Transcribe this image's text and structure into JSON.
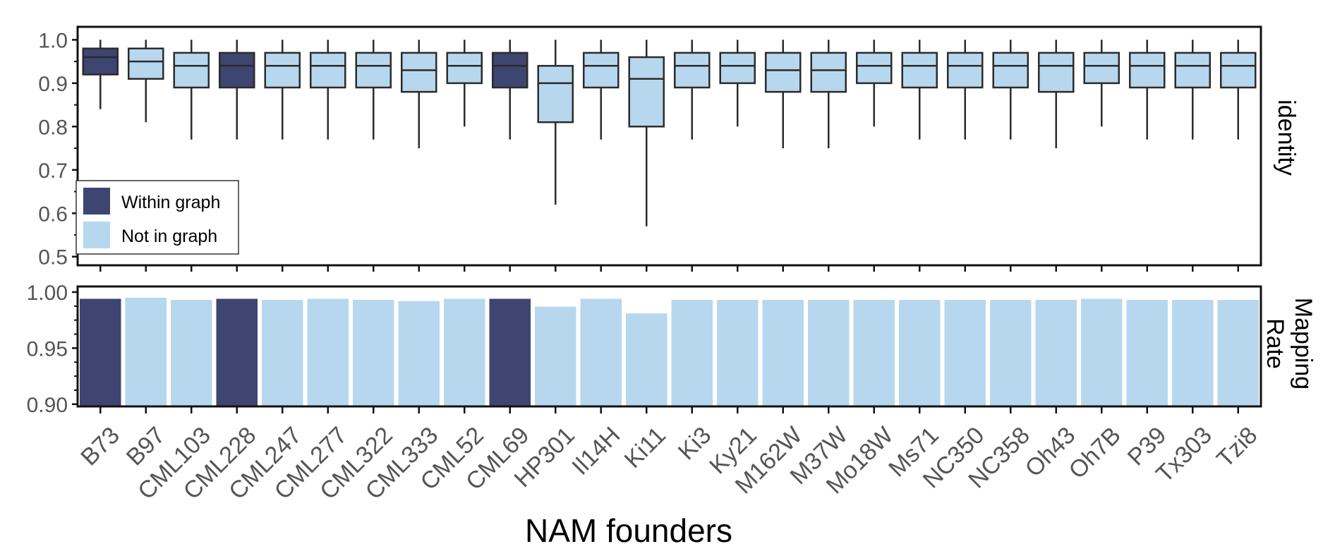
{
  "colors": {
    "within_graph": "#3d4570",
    "not_in_graph": "#b7d7ee",
    "frame": "#111111",
    "whisker": "#2b2b2b"
  },
  "chart_data": [
    {
      "type": "box",
      "panel": "top",
      "ylabel": "identity",
      "ylim": [
        0.48,
        1.03
      ],
      "yticks": [
        "1.0",
        "0.9",
        "0.8",
        "0.7",
        "0.6",
        "0.5"
      ],
      "legend": {
        "placement": "bottom-left",
        "entries": [
          {
            "label": "Within graph",
            "group": "within_graph"
          },
          {
            "label": "Not in graph",
            "group": "not_in_graph"
          }
        ]
      },
      "categories": [
        "B73",
        "B97",
        "CML103",
        "CML228",
        "CML247",
        "CML277",
        "CML322",
        "CML333",
        "CML52",
        "CML69",
        "HP301",
        "Il14H",
        "Ki11",
        "Ki3",
        "Ky21",
        "M162W",
        "M37W",
        "Mo18W",
        "Ms71",
        "NC350",
        "NC358",
        "Oh43",
        "Oh7B",
        "P39",
        "Tx303",
        "Tzi8"
      ],
      "groups": [
        "within_graph",
        "not_in_graph",
        "not_in_graph",
        "within_graph",
        "not_in_graph",
        "not_in_graph",
        "not_in_graph",
        "not_in_graph",
        "not_in_graph",
        "within_graph",
        "not_in_graph",
        "not_in_graph",
        "not_in_graph",
        "not_in_graph",
        "not_in_graph",
        "not_in_graph",
        "not_in_graph",
        "not_in_graph",
        "not_in_graph",
        "not_in_graph",
        "not_in_graph",
        "not_in_graph",
        "not_in_graph",
        "not_in_graph",
        "not_in_graph",
        "not_in_graph"
      ],
      "boxes": [
        {
          "min": 0.84,
          "q1": 0.92,
          "median": 0.96,
          "q3": 0.98,
          "max": 1.0
        },
        {
          "min": 0.81,
          "q1": 0.91,
          "median": 0.95,
          "q3": 0.98,
          "max": 1.0
        },
        {
          "min": 0.77,
          "q1": 0.89,
          "median": 0.94,
          "q3": 0.97,
          "max": 1.0
        },
        {
          "min": 0.77,
          "q1": 0.89,
          "median": 0.94,
          "q3": 0.97,
          "max": 1.0
        },
        {
          "min": 0.77,
          "q1": 0.89,
          "median": 0.94,
          "q3": 0.97,
          "max": 1.0
        },
        {
          "min": 0.77,
          "q1": 0.89,
          "median": 0.94,
          "q3": 0.97,
          "max": 1.0
        },
        {
          "min": 0.77,
          "q1": 0.89,
          "median": 0.94,
          "q3": 0.97,
          "max": 1.0
        },
        {
          "min": 0.75,
          "q1": 0.88,
          "median": 0.93,
          "q3": 0.97,
          "max": 1.0
        },
        {
          "min": 0.8,
          "q1": 0.9,
          "median": 0.94,
          "q3": 0.97,
          "max": 1.0
        },
        {
          "min": 0.77,
          "q1": 0.89,
          "median": 0.94,
          "q3": 0.97,
          "max": 1.0
        },
        {
          "min": 0.62,
          "q1": 0.81,
          "median": 0.9,
          "q3": 0.94,
          "max": 1.0
        },
        {
          "min": 0.77,
          "q1": 0.89,
          "median": 0.94,
          "q3": 0.97,
          "max": 1.0
        },
        {
          "min": 0.57,
          "q1": 0.8,
          "median": 0.91,
          "q3": 0.96,
          "max": 1.0
        },
        {
          "min": 0.77,
          "q1": 0.89,
          "median": 0.94,
          "q3": 0.97,
          "max": 1.0
        },
        {
          "min": 0.8,
          "q1": 0.9,
          "median": 0.94,
          "q3": 0.97,
          "max": 1.0
        },
        {
          "min": 0.75,
          "q1": 0.88,
          "median": 0.93,
          "q3": 0.97,
          "max": 1.0
        },
        {
          "min": 0.75,
          "q1": 0.88,
          "median": 0.93,
          "q3": 0.97,
          "max": 1.0
        },
        {
          "min": 0.8,
          "q1": 0.9,
          "median": 0.94,
          "q3": 0.97,
          "max": 1.0
        },
        {
          "min": 0.77,
          "q1": 0.89,
          "median": 0.94,
          "q3": 0.97,
          "max": 1.0
        },
        {
          "min": 0.77,
          "q1": 0.89,
          "median": 0.94,
          "q3": 0.97,
          "max": 1.0
        },
        {
          "min": 0.77,
          "q1": 0.89,
          "median": 0.94,
          "q3": 0.97,
          "max": 1.0
        },
        {
          "min": 0.75,
          "q1": 0.88,
          "median": 0.94,
          "q3": 0.97,
          "max": 1.0
        },
        {
          "min": 0.8,
          "q1": 0.9,
          "median": 0.94,
          "q3": 0.97,
          "max": 1.0
        },
        {
          "min": 0.77,
          "q1": 0.89,
          "median": 0.94,
          "q3": 0.97,
          "max": 1.0
        },
        {
          "min": 0.77,
          "q1": 0.89,
          "median": 0.94,
          "q3": 0.97,
          "max": 1.0
        },
        {
          "min": 0.77,
          "q1": 0.89,
          "median": 0.94,
          "q3": 0.97,
          "max": 1.0
        }
      ]
    },
    {
      "type": "bar",
      "panel": "bottom",
      "ylabel": "Mapping Rate",
      "ylabel_lines": [
        "Mapping",
        "Rate"
      ],
      "ylim": [
        0.898,
        1.005
      ],
      "yticks": [
        "1.00",
        "0.95",
        "0.90"
      ],
      "xlabel": "NAM founders",
      "values": [
        0.994,
        0.995,
        0.993,
        0.994,
        0.993,
        0.994,
        0.993,
        0.992,
        0.994,
        0.994,
        0.987,
        0.994,
        0.981,
        0.993,
        0.993,
        0.993,
        0.993,
        0.993,
        0.993,
        0.993,
        0.993,
        0.993,
        0.994,
        0.993,
        0.993,
        0.993
      ]
    }
  ]
}
